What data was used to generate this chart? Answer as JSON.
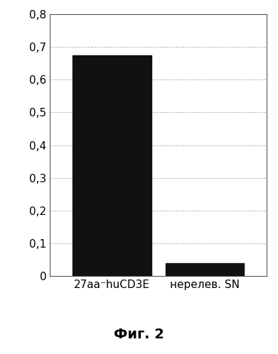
{
  "categories": [
    "27aa⁻huCD3E",
    "нерелев. SN"
  ],
  "values": [
    0.675,
    0.04
  ],
  "bar_colors": [
    "#111111",
    "#111111"
  ],
  "bar_width": 0.38,
  "ylim": [
    0,
    0.8
  ],
  "yticks": [
    0,
    0.1,
    0.2,
    0.3,
    0.4,
    0.5,
    0.6,
    0.7,
    0.8
  ],
  "ytick_labels": [
    "0",
    "0,1",
    "0,2",
    "0,3",
    "0,4",
    "0,5",
    "0,6",
    "0,7",
    "0,8"
  ],
  "figure_caption": "Фиг. 2",
  "background_color": "#ffffff",
  "grid_color": "#b0b0b0",
  "tick_fontsize": 11,
  "caption_fontsize": 14,
  "spine_color": "#555555",
  "bar_positions": [
    0.3,
    0.75
  ]
}
